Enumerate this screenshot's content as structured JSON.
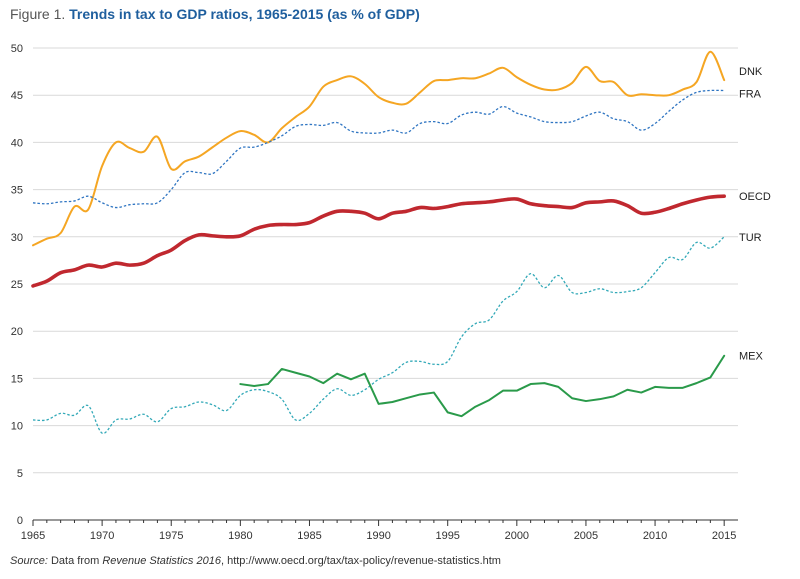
{
  "figure": {
    "label": "Figure 1.",
    "title": "Trends in tax to GDP ratios, 1965-2015 (as % of GDP)"
  },
  "source": {
    "label": "Source:",
    "pre": " Data from ",
    "italic": "Revenue Statistics 2016",
    "post": ", http://www.oecd.org/tax/tax-policy/revenue-statistics.htm"
  },
  "chart_data": {
    "type": "line",
    "title": "Trends in tax to GDP ratios, 1965-2015 (as % of GDP)",
    "xlabel": "",
    "ylabel": "",
    "xlim": [
      1965,
      2016
    ],
    "ylim": [
      0,
      50
    ],
    "x_ticks": [
      1965,
      1970,
      1975,
      1980,
      1985,
      1990,
      1995,
      2000,
      2005,
      2010,
      2015
    ],
    "y_ticks": [
      0,
      5,
      10,
      15,
      20,
      25,
      30,
      35,
      40,
      45,
      50
    ],
    "grid": "horizontal",
    "series": [
      {
        "name": "DNK",
        "color": "#f5a623",
        "style": "solid",
        "width": 2,
        "x": [
          1965,
          1966,
          1967,
          1968,
          1969,
          1970,
          1971,
          1972,
          1973,
          1974,
          1975,
          1976,
          1977,
          1978,
          1979,
          1980,
          1981,
          1982,
          1983,
          1984,
          1985,
          1986,
          1987,
          1988,
          1989,
          1990,
          1991,
          1992,
          1993,
          1994,
          1995,
          1996,
          1997,
          1998,
          1999,
          2000,
          2001,
          2002,
          2003,
          2004,
          2005,
          2006,
          2007,
          2008,
          2009,
          2010,
          2011,
          2012,
          2013,
          2014,
          2015
        ],
        "y": [
          29.1,
          29.8,
          30.4,
          33.2,
          32.9,
          37.5,
          40.0,
          39.4,
          39.0,
          40.6,
          37.2,
          38.0,
          38.5,
          39.5,
          40.5,
          41.2,
          40.8,
          40.0,
          41.5,
          42.7,
          43.8,
          45.9,
          46.6,
          47.0,
          46.2,
          44.8,
          44.2,
          44.1,
          45.3,
          46.5,
          46.6,
          46.8,
          46.8,
          47.3,
          47.9,
          46.9,
          46.1,
          45.6,
          45.6,
          46.3,
          48.0,
          46.5,
          46.4,
          45.0,
          45.1,
          45.0,
          45.0,
          45.6,
          46.4,
          49.6,
          46.6
        ]
      },
      {
        "name": "FRA",
        "color": "#2f75c2",
        "style": "dotted",
        "width": 1.3,
        "x": [
          1965,
          1966,
          1967,
          1968,
          1969,
          1970,
          1971,
          1972,
          1973,
          1974,
          1975,
          1976,
          1977,
          1978,
          1979,
          1980,
          1981,
          1982,
          1983,
          1984,
          1985,
          1986,
          1987,
          1988,
          1989,
          1990,
          1991,
          1992,
          1993,
          1994,
          1995,
          1996,
          1997,
          1998,
          1999,
          2000,
          2001,
          2002,
          2003,
          2004,
          2005,
          2006,
          2007,
          2008,
          2009,
          2010,
          2011,
          2012,
          2013,
          2014,
          2015
        ],
        "y": [
          33.6,
          33.5,
          33.7,
          33.8,
          34.3,
          33.6,
          33.1,
          33.4,
          33.5,
          33.6,
          35.0,
          36.8,
          36.8,
          36.7,
          38.0,
          39.4,
          39.5,
          40.0,
          40.7,
          41.7,
          41.9,
          41.8,
          42.1,
          41.2,
          41.0,
          41.0,
          41.3,
          41.0,
          42.0,
          42.2,
          42.0,
          42.9,
          43.2,
          43.0,
          43.8,
          43.1,
          42.7,
          42.2,
          42.1,
          42.2,
          42.8,
          43.2,
          42.5,
          42.2,
          41.3,
          42.0,
          43.3,
          44.5,
          45.3,
          45.5,
          45.5
        ]
      },
      {
        "name": "OECD",
        "color": "#c0282f",
        "style": "solid",
        "width": 3.6,
        "x": [
          1965,
          1966,
          1967,
          1968,
          1969,
          1970,
          1971,
          1972,
          1973,
          1974,
          1975,
          1976,
          1977,
          1978,
          1979,
          1980,
          1981,
          1982,
          1983,
          1984,
          1985,
          1986,
          1987,
          1988,
          1989,
          1990,
          1991,
          1992,
          1993,
          1994,
          1995,
          1996,
          1997,
          1998,
          1999,
          2000,
          2001,
          2002,
          2003,
          2004,
          2005,
          2006,
          2007,
          2008,
          2009,
          2010,
          2011,
          2012,
          2013,
          2014,
          2015
        ],
        "y": [
          24.8,
          25.3,
          26.2,
          26.5,
          27.0,
          26.8,
          27.2,
          27.0,
          27.2,
          28.0,
          28.6,
          29.6,
          30.2,
          30.1,
          30.0,
          30.1,
          30.8,
          31.2,
          31.3,
          31.3,
          31.5,
          32.2,
          32.7,
          32.7,
          32.5,
          31.9,
          32.5,
          32.7,
          33.1,
          33.0,
          33.2,
          33.5,
          33.6,
          33.7,
          33.9,
          34.0,
          33.5,
          33.3,
          33.2,
          33.1,
          33.6,
          33.7,
          33.8,
          33.3,
          32.5,
          32.6,
          33.0,
          33.5,
          33.9,
          34.2,
          34.3
        ]
      },
      {
        "name": "TUR",
        "color": "#33a9b8",
        "style": "dotted",
        "width": 1.3,
        "x": [
          1965,
          1966,
          1967,
          1968,
          1969,
          1970,
          1971,
          1972,
          1973,
          1974,
          1975,
          1976,
          1977,
          1978,
          1979,
          1980,
          1981,
          1982,
          1983,
          1984,
          1985,
          1986,
          1987,
          1988,
          1989,
          1990,
          1991,
          1992,
          1993,
          1994,
          1995,
          1996,
          1997,
          1998,
          1999,
          2000,
          2001,
          2002,
          2003,
          2004,
          2005,
          2006,
          2007,
          2008,
          2009,
          2010,
          2011,
          2012,
          2013,
          2014,
          2015
        ],
        "y": [
          10.6,
          10.6,
          11.3,
          11.1,
          12.1,
          9.2,
          10.6,
          10.7,
          11.2,
          10.4,
          11.8,
          12.0,
          12.5,
          12.2,
          11.6,
          13.2,
          13.8,
          13.6,
          12.8,
          10.6,
          11.3,
          12.8,
          13.9,
          13.2,
          13.8,
          14.9,
          15.6,
          16.7,
          16.8,
          16.5,
          16.8,
          19.4,
          20.8,
          21.2,
          23.2,
          24.2,
          26.1,
          24.6,
          25.9,
          24.1,
          24.1,
          24.5,
          24.1,
          24.2,
          24.6,
          26.2,
          27.8,
          27.6,
          29.4,
          28.8,
          30.0
        ]
      },
      {
        "name": "MEX",
        "color": "#2a9a4a",
        "style": "solid",
        "width": 2,
        "x": [
          1980,
          1981,
          1982,
          1983,
          1984,
          1985,
          1986,
          1987,
          1988,
          1989,
          1990,
          1991,
          1992,
          1993,
          1994,
          1995,
          1996,
          1997,
          1998,
          1999,
          2000,
          2001,
          2002,
          2003,
          2004,
          2005,
          2006,
          2007,
          2008,
          2009,
          2010,
          2011,
          2012,
          2013,
          2014,
          2015
        ],
        "y": [
          14.4,
          14.2,
          14.4,
          16.0,
          15.6,
          15.2,
          14.5,
          15.5,
          14.9,
          15.5,
          12.3,
          12.5,
          12.9,
          13.3,
          13.5,
          11.4,
          11.0,
          12.0,
          12.7,
          13.7,
          13.7,
          14.4,
          14.5,
          14.1,
          12.9,
          12.6,
          12.8,
          13.1,
          13.8,
          13.5,
          14.1,
          14.0,
          14.0,
          14.5,
          15.1,
          17.4
        ]
      }
    ]
  }
}
